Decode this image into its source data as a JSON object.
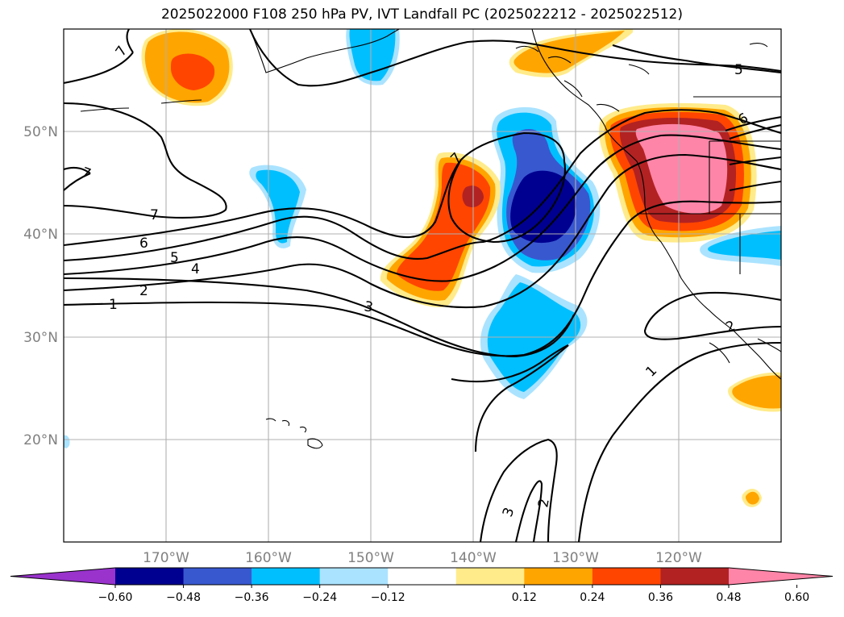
{
  "title": "2025022000 F108 250 hPa PV, IVT Landfall PC (2025022212 - 2025022512)",
  "map": {
    "lon_labels": [
      "170°W",
      "160°W",
      "150°W",
      "140°W",
      "130°W",
      "120°W"
    ],
    "lat_labels": [
      "50°N",
      "40°N",
      "30°N",
      "20°N"
    ]
  },
  "colorbar": {
    "colors": [
      "#9933cc",
      "#000090",
      "#3858d0",
      "#00bfff",
      "#aae3ff",
      "#ffffff",
      "#ffeb8a",
      "#ffa500",
      "#ff4500",
      "#b22222",
      "#ff85a8"
    ],
    "tick_labels": [
      "−0.60",
      "−0.48",
      "−0.36",
      "−0.24",
      "−0.12",
      "0.12",
      "0.24",
      "0.36",
      "0.48",
      "0.60"
    ]
  },
  "contour_labels": {
    "pv_7_upper": "7",
    "pv_7": "7",
    "pv_6": "6",
    "pv_5": "5",
    "pv_4": "4",
    "pv_3": "3",
    "pv_2": "2",
    "pv_1": "1",
    "pv_5_ne": "5",
    "pv_6_ne": "6",
    "pv_7_ridge": "7",
    "pv_1_se": "1",
    "pv_2_se": "2",
    "pv_2_s": "2",
    "pv_3_s": "3",
    "pv_7_left": "7"
  }
}
